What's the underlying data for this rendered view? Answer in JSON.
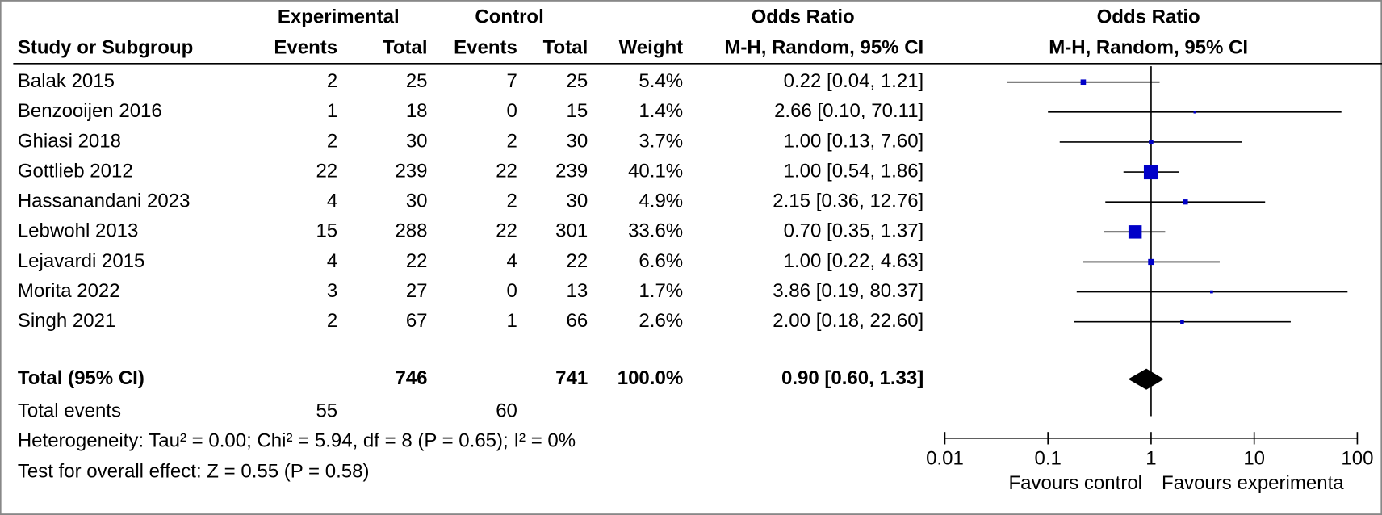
{
  "chart_data": {
    "type": "forest",
    "group_headers": {
      "experimental": "Experimental",
      "control": "Control",
      "or_table": "Odds Ratio",
      "or_plot": "Odds Ratio"
    },
    "column_headers": {
      "study": "Study or Subgroup",
      "exp_events": "Events",
      "exp_total": "Total",
      "ctrl_events": "Events",
      "ctrl_total": "Total",
      "weight": "Weight",
      "or_table": "M-H, Random, 95% CI",
      "or_plot": "M-H, Random, 95% CI"
    },
    "studies": [
      {
        "name": "Balak 2015",
        "exp_events": 2,
        "exp_total": 25,
        "ctrl_events": 7,
        "ctrl_total": 25,
        "weight": 5.4,
        "weight_label": "5.4%",
        "or": 0.22,
        "ci_low": 0.04,
        "ci_high": 1.21,
        "ci_label": "0.22 [0.04, 1.21]"
      },
      {
        "name": "Benzooijen 2016",
        "exp_events": 1,
        "exp_total": 18,
        "ctrl_events": 0,
        "ctrl_total": 15,
        "weight": 1.4,
        "weight_label": "1.4%",
        "or": 2.66,
        "ci_low": 0.1,
        "ci_high": 70.11,
        "ci_label": "2.66 [0.10, 70.11]"
      },
      {
        "name": "Ghiasi 2018",
        "exp_events": 2,
        "exp_total": 30,
        "ctrl_events": 2,
        "ctrl_total": 30,
        "weight": 3.7,
        "weight_label": "3.7%",
        "or": 1.0,
        "ci_low": 0.13,
        "ci_high": 7.6,
        "ci_label": "1.00 [0.13, 7.60]"
      },
      {
        "name": "Gottlieb 2012",
        "exp_events": 22,
        "exp_total": 239,
        "ctrl_events": 22,
        "ctrl_total": 239,
        "weight": 40.1,
        "weight_label": "40.1%",
        "or": 1.0,
        "ci_low": 0.54,
        "ci_high": 1.86,
        "ci_label": "1.00 [0.54, 1.86]"
      },
      {
        "name": "Hassanandani 2023",
        "exp_events": 4,
        "exp_total": 30,
        "ctrl_events": 2,
        "ctrl_total": 30,
        "weight": 4.9,
        "weight_label": "4.9%",
        "or": 2.15,
        "ci_low": 0.36,
        "ci_high": 12.76,
        "ci_label": "2.15 [0.36, 12.76]"
      },
      {
        "name": "Lebwohl 2013",
        "exp_events": 15,
        "exp_total": 288,
        "ctrl_events": 22,
        "ctrl_total": 301,
        "weight": 33.6,
        "weight_label": "33.6%",
        "or": 0.7,
        "ci_low": 0.35,
        "ci_high": 1.37,
        "ci_label": "0.70 [0.35, 1.37]"
      },
      {
        "name": "Lejavardi 2015",
        "exp_events": 4,
        "exp_total": 22,
        "ctrl_events": 4,
        "ctrl_total": 22,
        "weight": 6.6,
        "weight_label": "6.6%",
        "or": 1.0,
        "ci_low": 0.22,
        "ci_high": 4.63,
        "ci_label": "1.00 [0.22, 4.63]"
      },
      {
        "name": "Morita 2022",
        "exp_events": 3,
        "exp_total": 27,
        "ctrl_events": 0,
        "ctrl_total": 13,
        "weight": 1.7,
        "weight_label": "1.7%",
        "or": 3.86,
        "ci_low": 0.19,
        "ci_high": 80.37,
        "ci_label": "3.86 [0.19, 80.37]"
      },
      {
        "name": "Singh 2021",
        "exp_events": 2,
        "exp_total": 67,
        "ctrl_events": 1,
        "ctrl_total": 66,
        "weight": 2.6,
        "weight_label": "2.6%",
        "or": 2.0,
        "ci_low": 0.18,
        "ci_high": 22.6,
        "ci_label": "2.00 [0.18, 22.60]"
      }
    ],
    "total": {
      "name": "Total (95% CI)",
      "exp_total": 746,
      "ctrl_total": 741,
      "weight": 100.0,
      "weight_label": "100.0%",
      "or": 0.9,
      "ci_low": 0.6,
      "ci_high": 1.33,
      "ci_label": "0.90 [0.60, 1.33]"
    },
    "total_events": {
      "label": "Total events",
      "exp_events": 55,
      "ctrl_events": 60
    },
    "heterogeneity": "Heterogeneity: Tau² = 0.00; Chi² = 5.94, df = 8 (P = 0.65); I² = 0%",
    "overall_effect": "Test for overall effect: Z = 0.55 (P = 0.58)",
    "xscale": "log",
    "xlim": [
      0.01,
      100
    ],
    "xticks": [
      0.01,
      0.1,
      1,
      10,
      100
    ],
    "reference_line": 1,
    "favours_left": "Favours control",
    "favours_right": "Favours experimenta",
    "marker_color": "#0000c8",
    "diamond_color": "#000000"
  }
}
